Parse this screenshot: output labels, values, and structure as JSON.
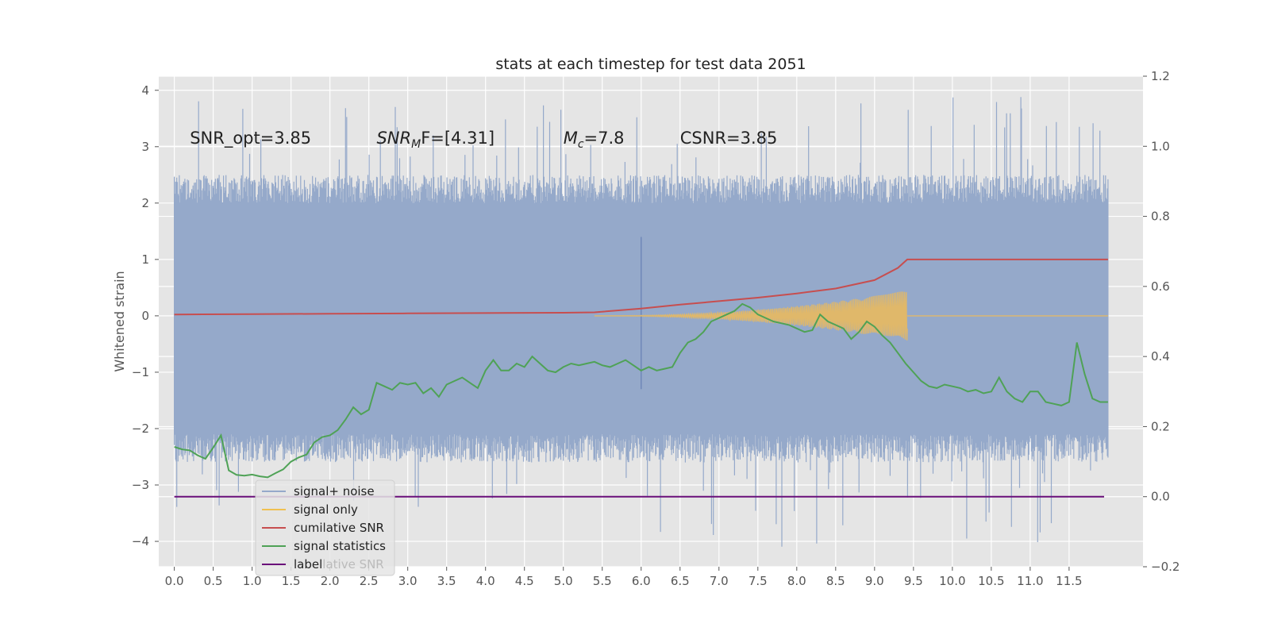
{
  "chart_data": {
    "type": "line",
    "title": "stats at each timestep for test data 2051",
    "ylabel": "Whitened strain",
    "grid": true,
    "legend_position": "lower-left",
    "xlim": [
      -0.2,
      12.45
    ],
    "ylim": [
      -4.45,
      4.25
    ],
    "y2lim": [
      -0.2,
      1.2
    ],
    "x_ticks": [
      0.0,
      0.5,
      1.0,
      1.5,
      2.0,
      2.5,
      3.0,
      3.5,
      4.0,
      4.5,
      5.0,
      5.5,
      6.0,
      6.5,
      7.0,
      7.5,
      8.0,
      8.5,
      9.0,
      9.5,
      10.0,
      10.5,
      11.0,
      11.5
    ],
    "x_tick_labels": [
      "0.0",
      "0.5",
      "1.0",
      "1.5",
      "2.0",
      "2.5",
      "3.0",
      "3.5",
      "4.0",
      "4.5",
      "5.0",
      "5.5",
      "6.0",
      "6.5",
      "7.0",
      "7.5",
      "8.0",
      "8.5",
      "9.0",
      "9.5",
      "10.0",
      "10.5",
      "11.0",
      "11.5"
    ],
    "y_ticks": [
      -4,
      -3,
      -2,
      -1,
      0,
      1,
      2,
      3,
      4
    ],
    "y_tick_labels": [
      "−4",
      "−3",
      "−2",
      "−1",
      "0",
      "1",
      "2",
      "3",
      "4"
    ],
    "y2_ticks": [
      -0.2,
      0.0,
      0.2,
      0.4,
      0.6,
      0.8,
      1.0,
      1.2
    ],
    "y2_tick_labels": [
      "−0.2",
      "0.0",
      "0.2",
      "0.4",
      "0.6",
      "0.8",
      "1.0",
      "1.2"
    ],
    "annotations": [
      {
        "id": "snr-opt",
        "x": 0.2,
        "y": 3.05,
        "prefix": "SNR_opt=3.85",
        "italic": "",
        "sub": "",
        "suffix": ""
      },
      {
        "id": "snr-mf",
        "x": 2.6,
        "y": 3.05,
        "prefix": "",
        "italic": "SNR",
        "sub": "M",
        "suffix": "F=[4.31]"
      },
      {
        "id": "mc",
        "x": 5.0,
        "y": 3.05,
        "prefix": "",
        "italic": "M",
        "sub": "c",
        "suffix": "=7.8"
      },
      {
        "id": "csnr",
        "x": 6.5,
        "y": 3.05,
        "prefix": "CSNR=3.85",
        "italic": "",
        "sub": "",
        "suffix": ""
      }
    ],
    "series": [
      {
        "name": "signal+ noise",
        "axis": "left",
        "color": "#95a9ca",
        "kind": "noise",
        "x_range": [
          0.0,
          12.0
        ],
        "band": [
          -2.4,
          2.3
        ],
        "spike_range": [
          -4.1,
          3.9
        ],
        "highlight": {
          "x": 6.0,
          "y_range": [
            -1.3,
            1.4
          ],
          "color": "#6f88b8"
        }
      },
      {
        "name": "signal only",
        "axis": "left",
        "color": "#e0b86a",
        "kind": "chirp",
        "start": 5.4,
        "end": 9.42,
        "peak_amplitude": 0.45,
        "tail_end": 12.0
      },
      {
        "name": "cumilative SNR",
        "axis": "right",
        "color": "#c74e4f",
        "x": [
          0.0,
          1.0,
          2.0,
          3.0,
          4.0,
          5.0,
          5.4,
          6.0,
          6.5,
          7.0,
          7.5,
          8.0,
          8.5,
          9.0,
          9.3,
          9.42,
          10.0,
          11.0,
          12.0
        ],
        "y": [
          0.52,
          0.521,
          0.522,
          0.523,
          0.524,
          0.525,
          0.526,
          0.537,
          0.548,
          0.558,
          0.568,
          0.58,
          0.594,
          0.618,
          0.653,
          0.677,
          0.677,
          0.677,
          0.677
        ]
      },
      {
        "name": "signal statistics",
        "axis": "right",
        "color": "#4fa256",
        "x": [
          0.0,
          0.1,
          0.2,
          0.3,
          0.4,
          0.5,
          0.6,
          0.7,
          0.8,
          0.9,
          1.0,
          1.1,
          1.2,
          1.3,
          1.4,
          1.5,
          1.6,
          1.7,
          1.8,
          1.9,
          2.0,
          2.1,
          2.2,
          2.3,
          2.4,
          2.5,
          2.6,
          2.7,
          2.8,
          2.9,
          3.0,
          3.1,
          3.2,
          3.3,
          3.4,
          3.5,
          3.6,
          3.7,
          3.8,
          3.9,
          4.0,
          4.1,
          4.2,
          4.3,
          4.4,
          4.5,
          4.6,
          4.7,
          4.8,
          4.9,
          5.0,
          5.1,
          5.2,
          5.3,
          5.4,
          5.5,
          5.6,
          5.7,
          5.8,
          5.9,
          6.0,
          6.1,
          6.2,
          6.3,
          6.4,
          6.5,
          6.6,
          6.7,
          6.8,
          6.9,
          7.0,
          7.1,
          7.2,
          7.3,
          7.4,
          7.5,
          7.6,
          7.7,
          7.8,
          7.9,
          8.0,
          8.1,
          8.2,
          8.3,
          8.4,
          8.5,
          8.6,
          8.7,
          8.8,
          8.9,
          9.0,
          9.1,
          9.2,
          9.3,
          9.4,
          9.5,
          9.6,
          9.7,
          9.8,
          9.9,
          10.0,
          10.1,
          10.2,
          10.3,
          10.4,
          10.5,
          10.6,
          10.7,
          10.8,
          10.9,
          11.0,
          11.1,
          11.2,
          11.3,
          11.4,
          11.5,
          11.6,
          11.7,
          11.8,
          11.9,
          12.0
        ],
        "y": [
          0.142,
          0.135,
          0.132,
          0.118,
          0.108,
          0.14,
          0.175,
          0.075,
          0.062,
          0.06,
          0.063,
          0.058,
          0.055,
          0.067,
          0.078,
          0.1,
          0.112,
          0.12,
          0.155,
          0.17,
          0.175,
          0.19,
          0.22,
          0.255,
          0.235,
          0.248,
          0.325,
          0.315,
          0.305,
          0.325,
          0.32,
          0.325,
          0.295,
          0.31,
          0.285,
          0.32,
          0.33,
          0.34,
          0.325,
          0.31,
          0.36,
          0.39,
          0.36,
          0.36,
          0.38,
          0.37,
          0.4,
          0.38,
          0.36,
          0.355,
          0.37,
          0.38,
          0.375,
          0.38,
          0.385,
          0.375,
          0.37,
          0.38,
          0.39,
          0.375,
          0.36,
          0.37,
          0.36,
          0.365,
          0.37,
          0.41,
          0.44,
          0.45,
          0.47,
          0.5,
          0.51,
          0.52,
          0.53,
          0.55,
          0.54,
          0.52,
          0.51,
          0.5,
          0.495,
          0.49,
          0.48,
          0.47,
          0.475,
          0.52,
          0.5,
          0.49,
          0.48,
          0.45,
          0.47,
          0.5,
          0.485,
          0.46,
          0.44,
          0.41,
          0.38,
          0.355,
          0.33,
          0.315,
          0.31,
          0.32,
          0.315,
          0.31,
          0.3,
          0.305,
          0.295,
          0.3,
          0.34,
          0.3,
          0.28,
          0.27,
          0.3,
          0.3,
          0.27,
          0.265,
          0.26,
          0.27,
          0.44,
          0.35,
          0.28,
          0.27,
          0.27
        ]
      },
      {
        "name": "label",
        "axis": "right",
        "color": "#6a0f7a",
        "x": [
          0.0,
          11.95
        ],
        "y": [
          0.0,
          0.0
        ]
      }
    ],
    "legend": {
      "entries": [
        "signal+ noise",
        "signal only",
        "cumilative SNR",
        "signal statistics",
        "label"
      ],
      "colors": [
        "#95a9ca",
        "#f0c050",
        "#c74e4f",
        "#4fa256",
        "#6a0f7a"
      ],
      "ghost_text": "lative SNR"
    }
  }
}
